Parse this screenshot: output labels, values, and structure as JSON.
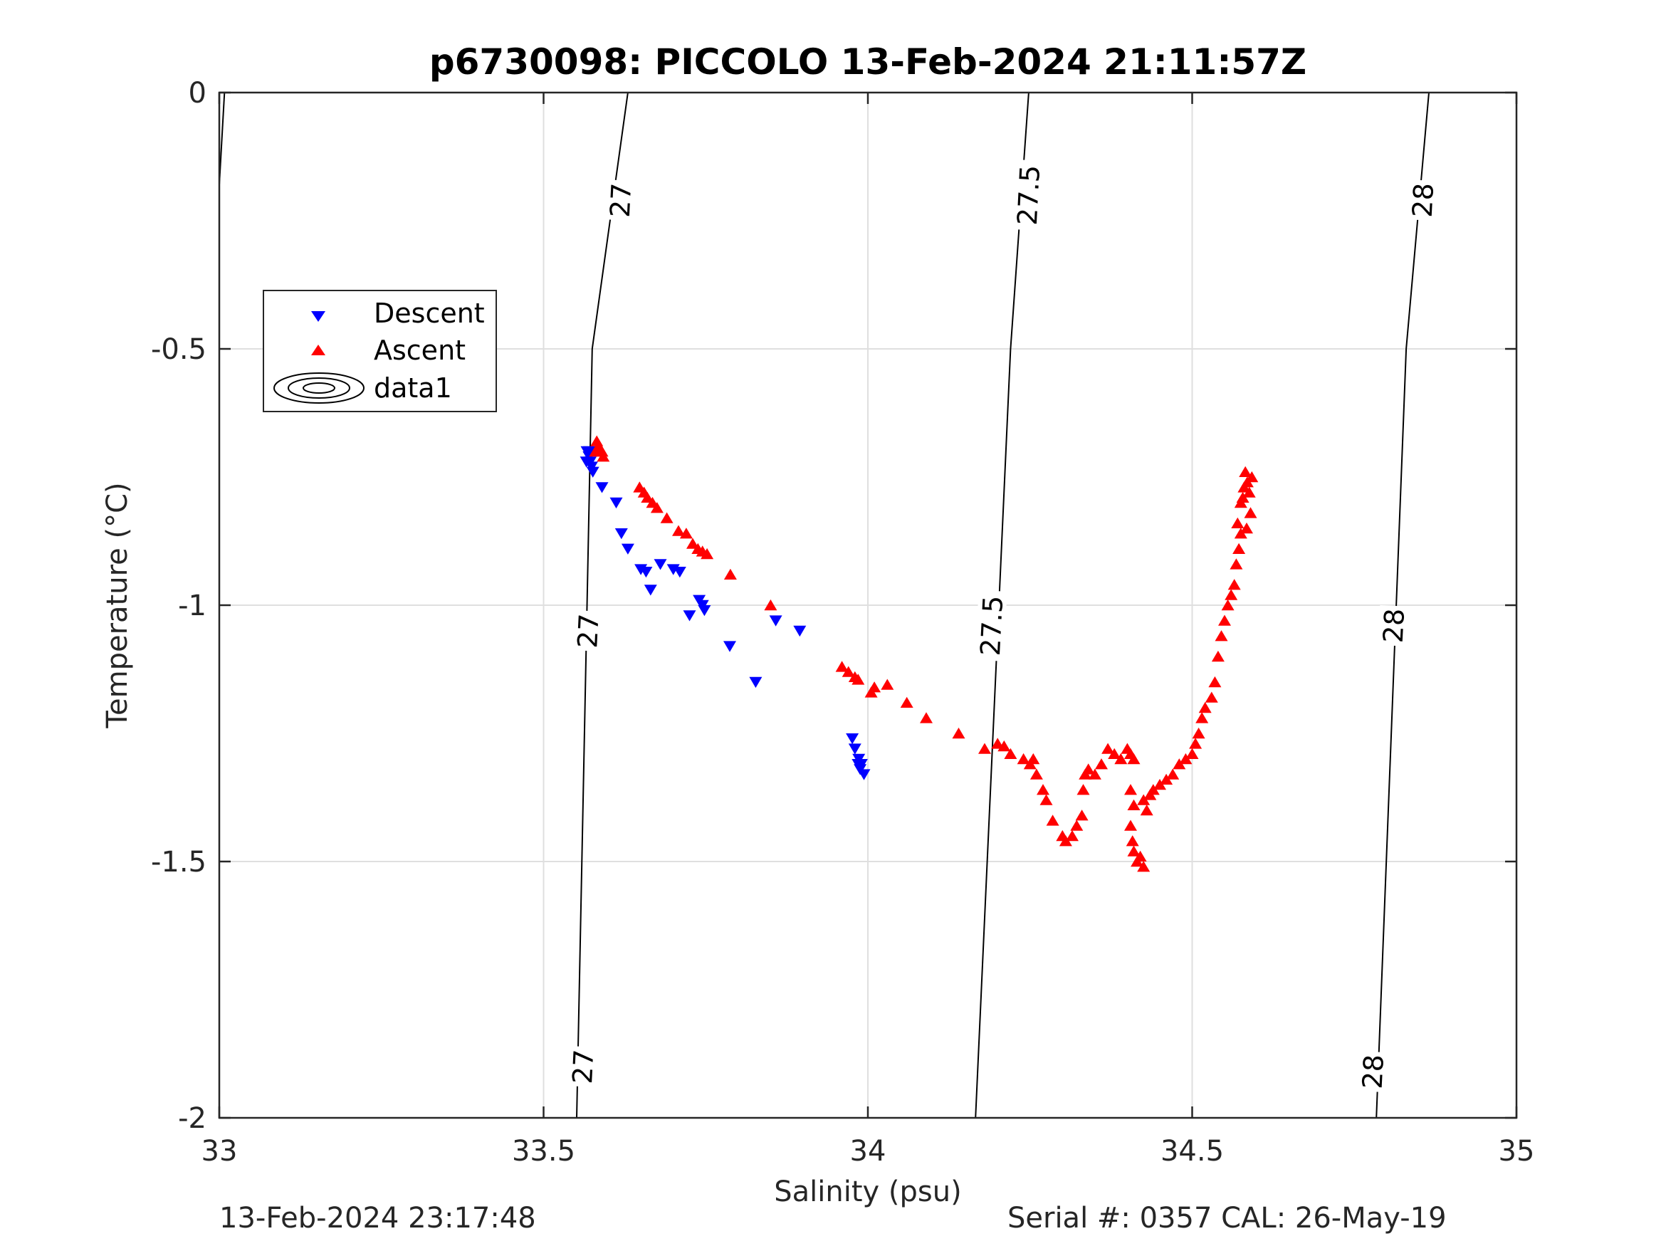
{
  "chart_data": {
    "type": "scatter",
    "title": "p6730098: PICCOLO 13-Feb-2024 21:11:57Z",
    "xlabel": "Salinity (psu)",
    "ylabel": "Temperature (°C)",
    "xlim": [
      33,
      35
    ],
    "ylim": [
      -2,
      0
    ],
    "xticks": [
      33,
      33.5,
      34,
      34.5,
      35
    ],
    "xtick_labels": [
      "33",
      "33.5",
      "34",
      "34.5",
      "35"
    ],
    "yticks": [
      -2,
      -1.5,
      -1,
      -0.5,
      0
    ],
    "ytick_labels": [
      "-2",
      "-1.5",
      "-1",
      "-0.5",
      "0"
    ],
    "grid": true,
    "legend_position": "upper-left",
    "legend": [
      "Descent",
      "Ascent",
      "data1"
    ],
    "series": [
      {
        "name": "Descent",
        "marker": "triangle-down",
        "color": "#0000ff",
        "points": [
          [
            33.567,
            -0.7
          ],
          [
            33.57,
            -0.71
          ],
          [
            33.572,
            -0.72
          ],
          [
            33.574,
            -0.73
          ],
          [
            33.576,
            -0.74
          ],
          [
            33.566,
            -0.72
          ],
          [
            33.571,
            -0.7
          ],
          [
            33.59,
            -0.77
          ],
          [
            33.612,
            -0.8
          ],
          [
            33.62,
            -0.86
          ],
          [
            33.63,
            -0.89
          ],
          [
            33.65,
            -0.93
          ],
          [
            33.658,
            -0.935
          ],
          [
            33.665,
            -0.97
          ],
          [
            33.68,
            -0.92
          ],
          [
            33.7,
            -0.93
          ],
          [
            33.71,
            -0.935
          ],
          [
            33.725,
            -1.02
          ],
          [
            33.74,
            -0.99
          ],
          [
            33.745,
            -1.0
          ],
          [
            33.748,
            -1.01
          ],
          [
            33.787,
            -1.08
          ],
          [
            33.827,
            -1.15
          ],
          [
            33.858,
            -1.03
          ],
          [
            33.895,
            -1.05
          ],
          [
            33.976,
            -1.26
          ],
          [
            33.98,
            -1.28
          ],
          [
            33.986,
            -1.3
          ],
          [
            33.99,
            -1.31
          ],
          [
            33.988,
            -1.32
          ],
          [
            33.994,
            -1.33
          ],
          [
            33.985,
            -1.31
          ]
        ]
      },
      {
        "name": "Ascent",
        "marker": "triangle-up",
        "color": "#ff0000",
        "points": [
          [
            33.582,
            -0.68
          ],
          [
            33.585,
            -0.69
          ],
          [
            33.59,
            -0.7
          ],
          [
            33.592,
            -0.71
          ],
          [
            33.58,
            -0.7
          ],
          [
            33.648,
            -0.77
          ],
          [
            33.655,
            -0.78
          ],
          [
            33.66,
            -0.79
          ],
          [
            33.668,
            -0.8
          ],
          [
            33.675,
            -0.81
          ],
          [
            33.69,
            -0.83
          ],
          [
            33.708,
            -0.855
          ],
          [
            33.72,
            -0.86
          ],
          [
            33.73,
            -0.88
          ],
          [
            33.738,
            -0.89
          ],
          [
            33.745,
            -0.895
          ],
          [
            33.752,
            -0.9
          ],
          [
            33.788,
            -0.94
          ],
          [
            33.85,
            -1.0
          ],
          [
            33.96,
            -1.12
          ],
          [
            33.97,
            -1.13
          ],
          [
            33.98,
            -1.14
          ],
          [
            33.985,
            -1.145
          ],
          [
            34.005,
            -1.17
          ],
          [
            34.01,
            -1.16
          ],
          [
            34.03,
            -1.155
          ],
          [
            34.06,
            -1.19
          ],
          [
            34.09,
            -1.22
          ],
          [
            34.14,
            -1.25
          ],
          [
            34.18,
            -1.28
          ],
          [
            34.2,
            -1.27
          ],
          [
            34.21,
            -1.275
          ],
          [
            34.22,
            -1.29
          ],
          [
            34.24,
            -1.3
          ],
          [
            34.25,
            -1.31
          ],
          [
            34.255,
            -1.3
          ],
          [
            34.26,
            -1.33
          ],
          [
            34.27,
            -1.36
          ],
          [
            34.275,
            -1.38
          ],
          [
            34.285,
            -1.42
          ],
          [
            34.3,
            -1.45
          ],
          [
            34.305,
            -1.46
          ],
          [
            34.315,
            -1.45
          ],
          [
            34.322,
            -1.43
          ],
          [
            34.33,
            -1.41
          ],
          [
            34.332,
            -1.36
          ],
          [
            34.335,
            -1.33
          ],
          [
            34.34,
            -1.32
          ],
          [
            34.35,
            -1.33
          ],
          [
            34.36,
            -1.31
          ],
          [
            34.37,
            -1.28
          ],
          [
            34.38,
            -1.29
          ],
          [
            34.39,
            -1.3
          ],
          [
            34.4,
            -1.28
          ],
          [
            34.405,
            -1.29
          ],
          [
            34.41,
            -1.3
          ],
          [
            34.405,
            -1.36
          ],
          [
            34.41,
            -1.39
          ],
          [
            34.405,
            -1.43
          ],
          [
            34.408,
            -1.46
          ],
          [
            34.41,
            -1.48
          ],
          [
            34.415,
            -1.5
          ],
          [
            34.425,
            -1.51
          ],
          [
            34.42,
            -1.49
          ],
          [
            34.425,
            -1.38
          ],
          [
            34.43,
            -1.4
          ],
          [
            34.435,
            -1.37
          ],
          [
            34.44,
            -1.36
          ],
          [
            34.45,
            -1.35
          ],
          [
            34.46,
            -1.34
          ],
          [
            34.47,
            -1.33
          ],
          [
            34.48,
            -1.31
          ],
          [
            34.49,
            -1.3
          ],
          [
            34.5,
            -1.29
          ],
          [
            34.505,
            -1.27
          ],
          [
            34.51,
            -1.25
          ],
          [
            34.515,
            -1.22
          ],
          [
            34.52,
            -1.2
          ],
          [
            34.53,
            -1.18
          ],
          [
            34.535,
            -1.15
          ],
          [
            34.54,
            -1.1
          ],
          [
            34.545,
            -1.06
          ],
          [
            34.55,
            -1.03
          ],
          [
            34.555,
            -1.0
          ],
          [
            34.56,
            -0.98
          ],
          [
            34.565,
            -0.96
          ],
          [
            34.568,
            -0.92
          ],
          [
            34.572,
            -0.89
          ],
          [
            34.575,
            -0.86
          ],
          [
            34.57,
            -0.84
          ],
          [
            34.575,
            -0.8
          ],
          [
            34.58,
            -0.77
          ],
          [
            34.582,
            -0.74
          ],
          [
            34.585,
            -0.76
          ],
          [
            34.588,
            -0.78
          ],
          [
            34.59,
            -0.82
          ],
          [
            34.592,
            -0.75
          ],
          [
            34.578,
            -0.79
          ],
          [
            34.584,
            -0.85
          ]
        ]
      }
    ],
    "contours": [
      {
        "level": "27",
        "points": [
          [
            33.551,
            -2.0
          ],
          [
            33.575,
            -0.5
          ],
          [
            33.63,
            0.0
          ]
        ],
        "labels": [
          [
            33.56,
            -1.9
          ],
          [
            33.568,
            -1.05
          ],
          [
            33.618,
            -0.21
          ]
        ]
      },
      {
        "level": "27.5",
        "points": [
          [
            34.166,
            -2.0
          ],
          [
            34.22,
            -0.5
          ],
          [
            34.248,
            0.0
          ]
        ],
        "labels": [
          [
            34.19,
            -1.04
          ],
          [
            34.247,
            -0.2
          ]
        ]
      },
      {
        "level": "28",
        "points": [
          [
            34.784,
            -2.0
          ],
          [
            34.83,
            -0.5
          ],
          [
            34.865,
            0.0
          ]
        ],
        "labels": [
          [
            34.778,
            -1.91
          ],
          [
            34.81,
            -1.04
          ],
          [
            34.855,
            -0.21
          ]
        ]
      },
      {
        "level": "",
        "points": [
          [
            33.0,
            -0.18
          ],
          [
            33.008,
            0.0
          ]
        ],
        "labels": []
      }
    ]
  },
  "footer": {
    "left": "13-Feb-2024 23:17:48",
    "right": "Serial #: 0357  CAL: 26-May-19"
  }
}
